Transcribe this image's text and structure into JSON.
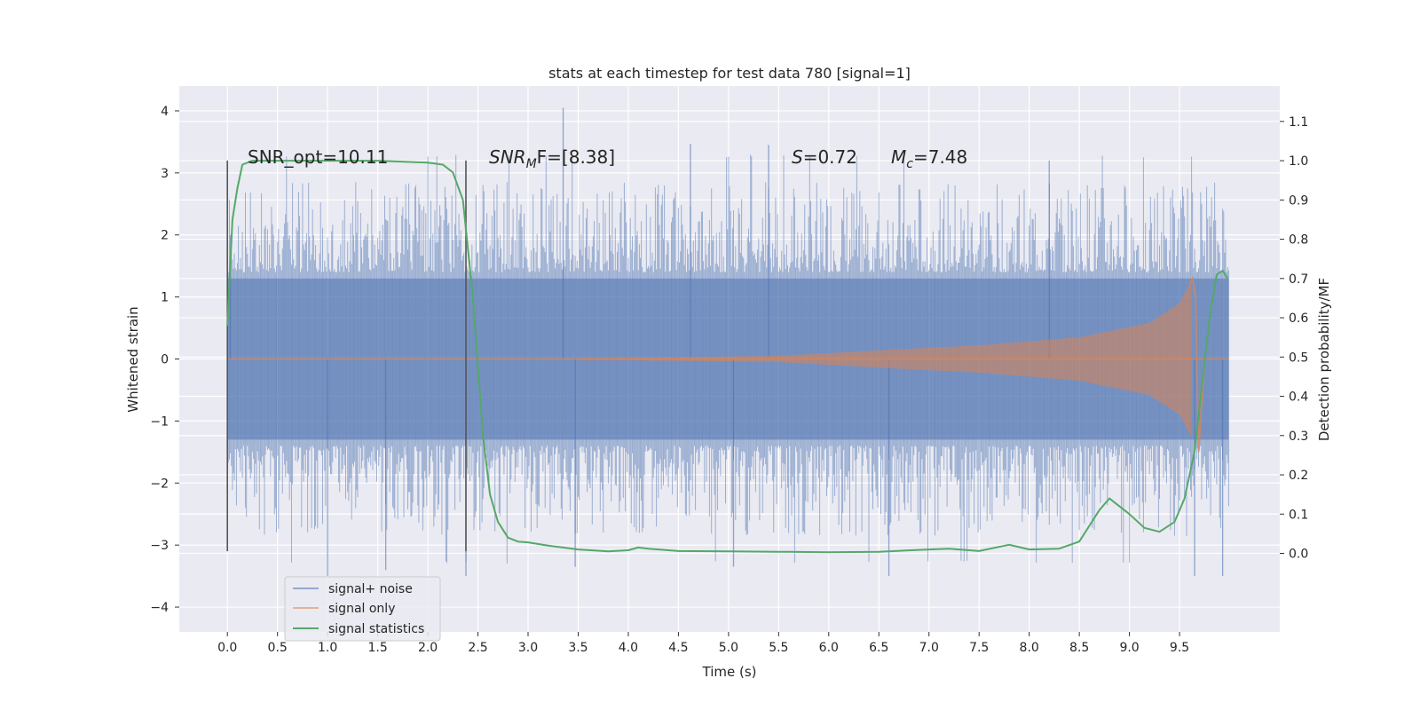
{
  "chart_data": {
    "type": "line",
    "title": "stats at each timestep for test data 780 [signal=1]",
    "xlabel": "Time (s)",
    "ylabel_left": "Whitened strain",
    "ylabel_right": "Detection probability/MF",
    "xlim": [
      -0.48,
      10.5
    ],
    "ylim_left": [
      -4.4,
      4.4
    ],
    "ylim_right": [
      -0.2,
      1.19
    ],
    "xticks": [
      0.0,
      0.5,
      1.0,
      1.5,
      2.0,
      2.5,
      3.0,
      3.5,
      4.0,
      4.5,
      5.0,
      5.5,
      6.0,
      6.5,
      7.0,
      7.5,
      8.0,
      8.5,
      9.0,
      9.5
    ],
    "xtick_labels": [
      "0.0",
      "0.5",
      "1.0",
      "1.5",
      "2.0",
      "2.5",
      "3.0",
      "3.5",
      "4.0",
      "4.5",
      "5.0",
      "5.5",
      "6.0",
      "6.5",
      "7.0",
      "7.5",
      "8.0",
      "8.5",
      "9.0",
      "9.5"
    ],
    "yticks_left": [
      4,
      3,
      2,
      1,
      0,
      -1,
      -2,
      -3,
      -4
    ],
    "ytick_labels_left": [
      "4",
      "3",
      "2",
      "1",
      "0",
      "−1",
      "−2",
      "−3",
      "−4"
    ],
    "yticks_right": [
      1.1,
      1.0,
      0.9,
      0.8,
      0.7,
      0.6,
      0.5,
      0.4,
      0.3,
      0.2,
      0.1,
      0.0
    ],
    "ytick_labels_right": [
      "1.1",
      "1.0",
      "0.9",
      "0.8",
      "0.7",
      "0.6",
      "0.5",
      "0.4",
      "0.3",
      "0.2",
      "0.1",
      "0.0"
    ],
    "grid": true,
    "legend_position": "bottom-left",
    "annotations": {
      "snr_opt": "SNR_opt=10.11",
      "snr_mf_main": "SNR",
      "snr_mf_sub": "M",
      "snr_mf_tail": "F=[8.38]",
      "s_var": "S",
      "s_val": "=0.72",
      "mc_var": "M",
      "mc_sub": "c",
      "mc_val": "=7.48"
    },
    "vertical_markers": [
      0.0,
      2.38
    ],
    "vertical_marker_range": [
      -3.1,
      3.2
    ],
    "series": [
      {
        "name": "signal+ noise",
        "kind": "noise",
        "color": "#4c72b0",
        "x_range": [
          0.0,
          9.99
        ],
        "core_band": [
          -1.3,
          1.3
        ],
        "typical_peak": 2.3,
        "spike_values": [
          [
            0.03,
            2.0
          ],
          [
            1.0,
            -3.5
          ],
          [
            1.58,
            -3.4
          ],
          [
            2.38,
            -3.5
          ],
          [
            3.35,
            4.05
          ],
          [
            3.47,
            -3.35
          ],
          [
            4.62,
            3.47
          ],
          [
            5.05,
            -3.35
          ],
          [
            5.4,
            3.45
          ],
          [
            6.6,
            -3.5
          ],
          [
            8.2,
            3.2
          ],
          [
            9.65,
            -3.5
          ],
          [
            9.93,
            -3.5
          ]
        ]
      },
      {
        "name": "signal only",
        "kind": "chirp",
        "color": "#dd8452",
        "x_range": [
          0.0,
          9.99
        ],
        "envelope": [
          [
            0.0,
            0.0
          ],
          [
            4.0,
            0.02
          ],
          [
            5.5,
            0.05
          ],
          [
            6.5,
            0.14
          ],
          [
            7.5,
            0.22
          ],
          [
            8.5,
            0.35
          ],
          [
            9.2,
            0.58
          ],
          [
            9.5,
            0.9
          ],
          [
            9.63,
            1.3
          ],
          [
            9.66,
            1.0
          ],
          [
            9.69,
            -1.5
          ],
          [
            9.75,
            0.0
          ],
          [
            9.99,
            0.0
          ]
        ]
      },
      {
        "name": "signal statistics",
        "kind": "line",
        "color": "#55a868",
        "axis": "right",
        "x": [
          0.0,
          0.05,
          0.1,
          0.15,
          0.25,
          0.5,
          1.0,
          1.5,
          2.0,
          2.15,
          2.25,
          2.35,
          2.45,
          2.55,
          2.62,
          2.7,
          2.8,
          2.9,
          3.0,
          3.2,
          3.5,
          3.8,
          4.0,
          4.1,
          4.2,
          4.5,
          5.0,
          5.5,
          6.0,
          6.5,
          7.0,
          7.2,
          7.5,
          7.8,
          8.0,
          8.3,
          8.5,
          8.6,
          8.7,
          8.8,
          8.9,
          9.0,
          9.15,
          9.3,
          9.45,
          9.55,
          9.65,
          9.72,
          9.8,
          9.87,
          9.93,
          9.98
        ],
        "y": [
          0.58,
          0.85,
          0.93,
          0.99,
          1.0,
          1.0,
          1.0,
          1.0,
          0.995,
          0.99,
          0.97,
          0.9,
          0.65,
          0.3,
          0.15,
          0.08,
          0.04,
          0.03,
          0.028,
          0.02,
          0.01,
          0.005,
          0.008,
          0.015,
          0.012,
          0.006,
          0.005,
          0.004,
          0.003,
          0.004,
          0.01,
          0.012,
          0.006,
          0.022,
          0.01,
          0.012,
          0.03,
          0.07,
          0.11,
          0.14,
          0.12,
          0.1,
          0.065,
          0.055,
          0.08,
          0.14,
          0.26,
          0.42,
          0.6,
          0.71,
          0.72,
          0.7
        ]
      }
    ]
  }
}
